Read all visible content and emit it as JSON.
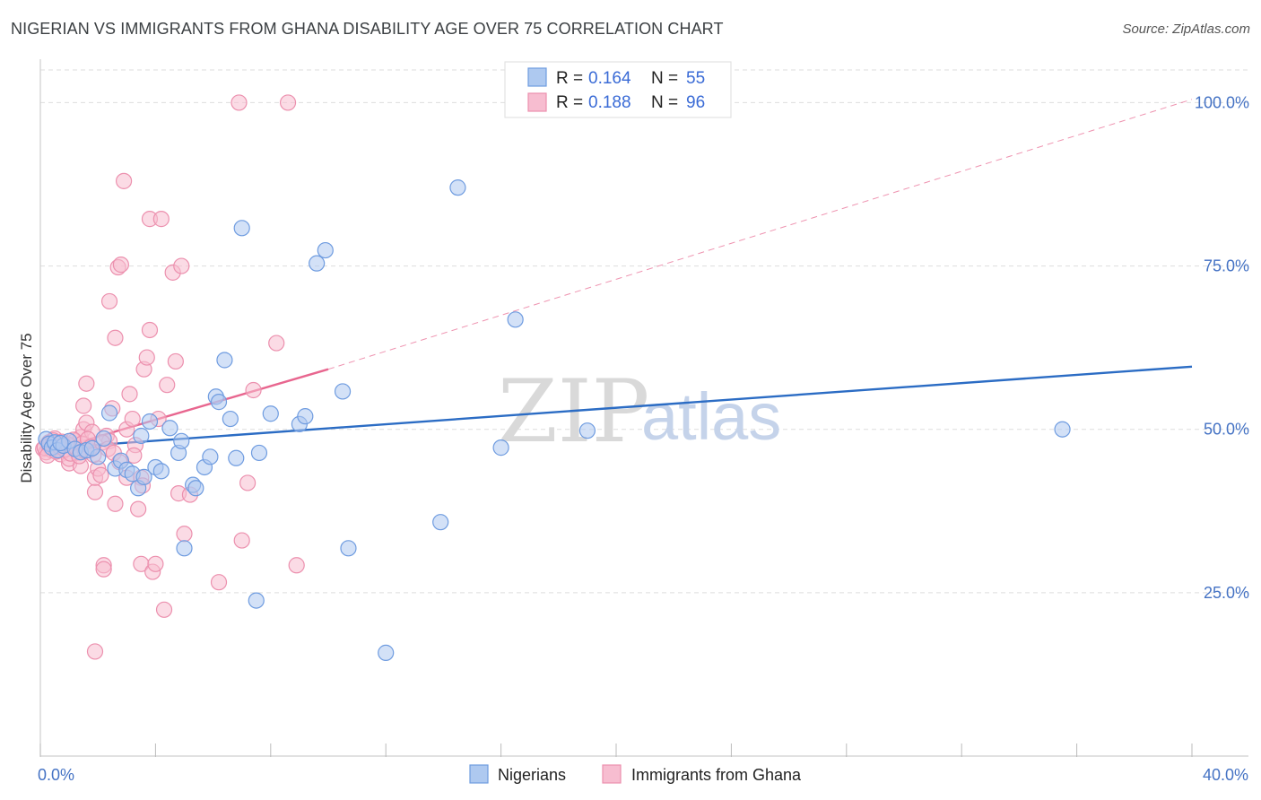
{
  "header": {
    "title": "NIGERIAN VS IMMIGRANTS FROM GHANA DISABILITY AGE OVER 75 CORRELATION CHART",
    "source": "Source: ZipAtlas.com"
  },
  "watermark": {
    "zip": "ZIP",
    "atlas": "atlas"
  },
  "colors": {
    "blue_fill": "#aec9f0",
    "blue_stroke": "#6f9ce0",
    "blue_line": "#2b6cc4",
    "pink_fill": "#f7bdd0",
    "pink_stroke": "#ec90ae",
    "pink_line": "#e8668f",
    "grid": "#dddddd",
    "tick_text": "#4472c4"
  },
  "legend": {
    "rows": [
      {
        "r_label": "R = ",
        "r_value": "0.164",
        "n_label": "N = ",
        "n_value": "55"
      },
      {
        "r_label": "R = ",
        "r_value": "0.188",
        "n_label": "N = ",
        "n_value": "96"
      }
    ]
  },
  "bottom_legend": [
    "Nigerians",
    "Immigrants from Ghana"
  ],
  "chart_data": {
    "type": "scatter",
    "title": "NIGERIAN VS IMMIGRANTS FROM GHANA DISABILITY AGE OVER 75 CORRELATION CHART",
    "xlabel": "",
    "ylabel": "Disability Age Over 75",
    "xlim": [
      0,
      40
    ],
    "ylim": [
      0,
      105
    ],
    "x_ticks": [
      "0.0%",
      "40.0%"
    ],
    "y_ticks": [
      {
        "value": 25,
        "label": "25.0%"
      },
      {
        "value": 50,
        "label": "50.0%"
      },
      {
        "value": 75,
        "label": "75.0%"
      },
      {
        "value": 100,
        "label": "100.0%"
      }
    ],
    "grid": true,
    "legend_position": "top-center",
    "series": [
      {
        "name": "Nigerians",
        "color": "blue",
        "points": [
          [
            0.2,
            48.5
          ],
          [
            0.3,
            47.8
          ],
          [
            0.4,
            47.2
          ],
          [
            0.5,
            48.0
          ],
          [
            0.6,
            46.8
          ],
          [
            0.8,
            47.5
          ],
          [
            1.0,
            48.2
          ],
          [
            1.2,
            47.0
          ],
          [
            1.4,
            46.5
          ],
          [
            1.6,
            46.8
          ],
          [
            2.0,
            45.8
          ],
          [
            2.2,
            48.6
          ],
          [
            2.4,
            52.5
          ],
          [
            2.6,
            44.0
          ],
          [
            2.8,
            45.2
          ],
          [
            3.0,
            43.8
          ],
          [
            3.2,
            43.2
          ],
          [
            3.4,
            41.0
          ],
          [
            3.5,
            49.0
          ],
          [
            3.8,
            51.2
          ],
          [
            4.0,
            44.2
          ],
          [
            4.2,
            43.6
          ],
          [
            4.5,
            50.2
          ],
          [
            4.8,
            46.4
          ],
          [
            4.9,
            48.2
          ],
          [
            5.0,
            31.8
          ],
          [
            5.3,
            41.5
          ],
          [
            5.4,
            41.0
          ],
          [
            5.7,
            44.2
          ],
          [
            5.9,
            45.8
          ],
          [
            6.1,
            55.0
          ],
          [
            6.2,
            54.2
          ],
          [
            6.4,
            60.6
          ],
          [
            6.6,
            51.6
          ],
          [
            6.8,
            45.6
          ],
          [
            7.0,
            80.8
          ],
          [
            7.5,
            23.8
          ],
          [
            7.6,
            46.4
          ],
          [
            8.0,
            52.4
          ],
          [
            9.0,
            50.8
          ],
          [
            9.2,
            52.0
          ],
          [
            9.6,
            75.4
          ],
          [
            9.9,
            77.4
          ],
          [
            10.5,
            55.8
          ],
          [
            10.7,
            31.8
          ],
          [
            12.0,
            15.8
          ],
          [
            13.9,
            35.8
          ],
          [
            14.5,
            87.0
          ],
          [
            16.0,
            47.2
          ],
          [
            16.5,
            66.8
          ],
          [
            19.0,
            49.8
          ],
          [
            35.5,
            50.0
          ],
          [
            0.7,
            47.9
          ],
          [
            1.8,
            47.1
          ],
          [
            3.6,
            42.7
          ]
        ]
      },
      {
        "name": "Immigrants from Ghana",
        "color": "pink",
        "points": [
          [
            0.1,
            47.0
          ],
          [
            0.2,
            46.5
          ],
          [
            0.3,
            48.0
          ],
          [
            0.3,
            47.5
          ],
          [
            0.4,
            46.8
          ],
          [
            0.5,
            47.2
          ],
          [
            0.5,
            48.6
          ],
          [
            0.6,
            47.8
          ],
          [
            0.7,
            46.2
          ],
          [
            0.8,
            47.6
          ],
          [
            0.9,
            47.0
          ],
          [
            1.0,
            44.8
          ],
          [
            1.0,
            45.5
          ],
          [
            1.1,
            47.5
          ],
          [
            1.2,
            48.2
          ],
          [
            1.3,
            46.4
          ],
          [
            1.4,
            44.4
          ],
          [
            1.4,
            48.8
          ],
          [
            1.5,
            50.0
          ],
          [
            1.5,
            53.6
          ],
          [
            1.6,
            51.0
          ],
          [
            1.6,
            57.0
          ],
          [
            1.7,
            46.8
          ],
          [
            1.8,
            49.6
          ],
          [
            1.9,
            40.4
          ],
          [
            1.9,
            42.6
          ],
          [
            2.0,
            44.0
          ],
          [
            2.1,
            43.0
          ],
          [
            2.2,
            29.2
          ],
          [
            2.2,
            28.6
          ],
          [
            2.3,
            49.0
          ],
          [
            2.4,
            48.2
          ],
          [
            2.4,
            69.6
          ],
          [
            2.5,
            53.2
          ],
          [
            2.6,
            38.6
          ],
          [
            2.6,
            64.0
          ],
          [
            2.7,
            74.8
          ],
          [
            2.8,
            75.2
          ],
          [
            2.9,
            88.0
          ],
          [
            3.0,
            50.0
          ],
          [
            3.0,
            42.6
          ],
          [
            3.1,
            55.4
          ],
          [
            3.2,
            51.6
          ],
          [
            3.3,
            47.6
          ],
          [
            3.4,
            37.8
          ],
          [
            3.5,
            42.6
          ],
          [
            3.5,
            29.4
          ],
          [
            3.6,
            59.2
          ],
          [
            3.7,
            61.0
          ],
          [
            3.8,
            65.2
          ],
          [
            3.8,
            82.2
          ],
          [
            3.9,
            28.2
          ],
          [
            4.0,
            29.4
          ],
          [
            4.1,
            51.6
          ],
          [
            4.2,
            82.2
          ],
          [
            4.3,
            22.4
          ],
          [
            4.4,
            56.8
          ],
          [
            4.6,
            74.0
          ],
          [
            4.7,
            60.4
          ],
          [
            4.8,
            40.2
          ],
          [
            4.9,
            75.0
          ],
          [
            5.0,
            34.0
          ],
          [
            5.2,
            40.0
          ],
          [
            6.2,
            26.6
          ],
          [
            7.0,
            33.0
          ],
          [
            7.2,
            41.8
          ],
          [
            7.4,
            56.0
          ],
          [
            8.2,
            63.2
          ],
          [
            8.9,
            29.2
          ],
          [
            1.9,
            16.0
          ],
          [
            6.9,
            100.0
          ],
          [
            8.6,
            100.0
          ],
          [
            0.15,
            47.2
          ],
          [
            0.25,
            46.0
          ],
          [
            0.35,
            47.9
          ],
          [
            0.45,
            48.3
          ],
          [
            0.55,
            46.6
          ],
          [
            0.65,
            47.4
          ],
          [
            0.75,
            48.1
          ],
          [
            0.85,
            46.9
          ],
          [
            0.95,
            47.7
          ],
          [
            1.05,
            46.3
          ],
          [
            1.15,
            48.4
          ],
          [
            1.25,
            47.1
          ],
          [
            1.35,
            45.9
          ],
          [
            1.45,
            47.8
          ],
          [
            1.55,
            46.7
          ],
          [
            1.65,
            48.5
          ],
          [
            1.75,
            47.3
          ],
          [
            1.85,
            46.1
          ],
          [
            2.15,
            48.0
          ],
          [
            2.35,
            47.0
          ],
          [
            2.55,
            46.4
          ],
          [
            2.75,
            45.0
          ],
          [
            3.25,
            46.0
          ],
          [
            3.55,
            41.4
          ]
        ]
      }
    ],
    "trendlines": [
      {
        "series": "Nigerians",
        "from": [
          0,
          47.0
        ],
        "to": [
          40,
          59.6
        ],
        "style": "solid"
      },
      {
        "series": "Immigrants from Ghana",
        "from": [
          0,
          46.3
        ],
        "to": [
          10,
          59.2
        ],
        "style": "solid"
      },
      {
        "series": "Immigrants from Ghana",
        "from": [
          10,
          59.2
        ],
        "to": [
          40,
          100.5
        ],
        "style": "dashed"
      }
    ]
  }
}
